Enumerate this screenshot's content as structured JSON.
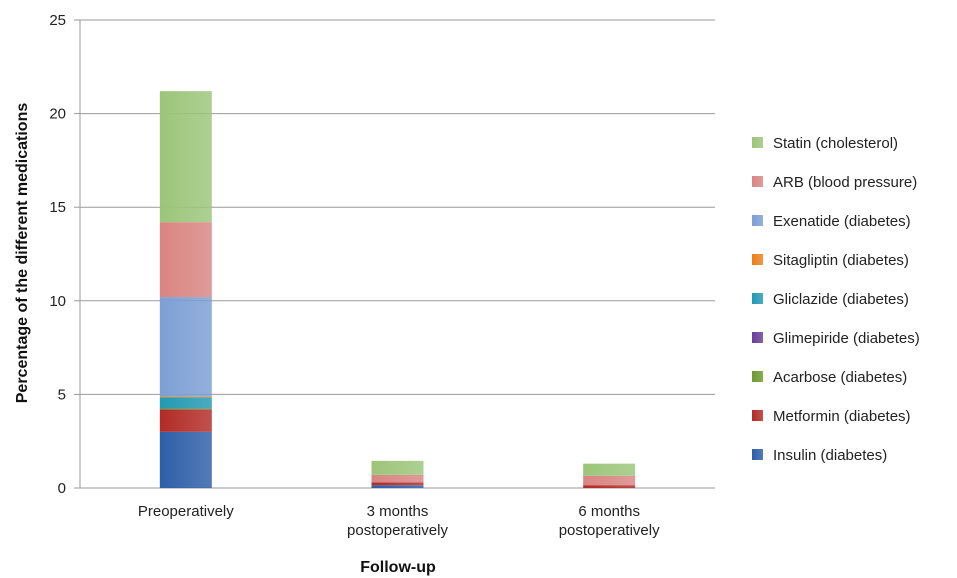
{
  "chart_data": {
    "type": "bar",
    "stacked": true,
    "categories": [
      [
        "Preoperatively"
      ],
      [
        "3 months",
        "postoperatively"
      ],
      [
        "6 months",
        "postoperatively"
      ]
    ],
    "series": [
      {
        "name": "Insulin (diabetes)",
        "color": "#2E5EA8",
        "values": [
          3.0,
          0.15,
          0.0
        ]
      },
      {
        "name": "Metformin (diabetes)",
        "color": "#B22B26",
        "values": [
          1.2,
          0.15,
          0.15
        ]
      },
      {
        "name": "Acarbose (diabetes)",
        "color": "#6E9A2F",
        "values": [
          0.05,
          0.0,
          0.0
        ]
      },
      {
        "name": "Glimepiride (diabetes)",
        "color": "#6A3E97",
        "values": [
          0.0,
          0.0,
          0.0
        ]
      },
      {
        "name": "Gliclazide (diabetes)",
        "color": "#2399B3",
        "values": [
          0.6,
          0.0,
          0.0
        ]
      },
      {
        "name": "Sitagliptin (diabetes)",
        "color": "#EE7E1E",
        "values": [
          0.05,
          0.0,
          0.0
        ]
      },
      {
        "name": "Exenatide (diabetes)",
        "color": "#7D9FD4",
        "values": [
          5.3,
          0.0,
          0.0
        ]
      },
      {
        "name": "ARB (blood pressure)",
        "color": "#D98582",
        "values": [
          4.0,
          0.4,
          0.5
        ]
      },
      {
        "name": "Statin (cholesterol)",
        "color": "#9CC57A",
        "values": [
          7.0,
          0.75,
          0.65
        ]
      }
    ],
    "xlabel": "Follow-up",
    "ylabel": "Percentage of the different medications",
    "ylim": [
      0,
      25
    ],
    "yticks": [
      0,
      5,
      10,
      15,
      20,
      25
    ],
    "grid": true,
    "legend_position": "right",
    "legend_order": "reversed"
  }
}
